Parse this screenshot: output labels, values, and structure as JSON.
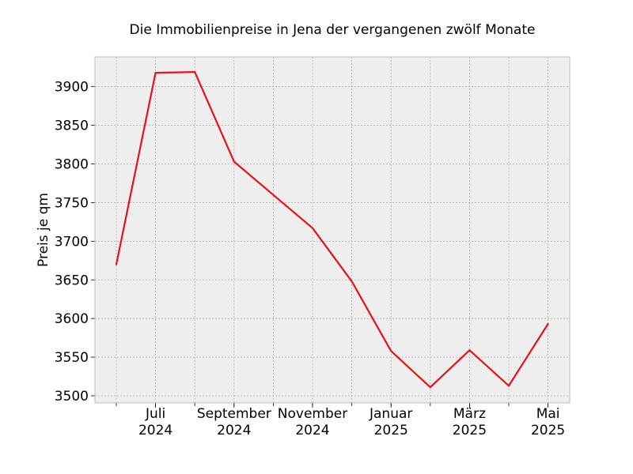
{
  "chart_data": {
    "type": "line",
    "title": "Die Immobilienpreise in Jena der vergangenen zwölf Monate",
    "xlabel": "",
    "ylabel": "Preis je qm",
    "x": [
      "2024-06",
      "2024-07",
      "2024-08",
      "2024-09",
      "2024-10",
      "2024-11",
      "2024-12",
      "2025-01",
      "2025-02",
      "2025-03",
      "2025-04",
      "2025-05"
    ],
    "series": [
      {
        "values": [
          3670,
          3918,
          3919,
          3803,
          3760,
          3717,
          3648,
          3558,
          3511,
          3559,
          3513,
          3593
        ]
      }
    ],
    "ylim": [
      3490,
      3940
    ],
    "y_ticks": [
      "3500",
      "3550",
      "3600",
      "3650",
      "3700",
      "3750",
      "3800",
      "3850",
      "3900"
    ],
    "x_tick_labels": [
      {
        "month": "Juli",
        "year": "2024"
      },
      {
        "month": "September",
        "year": "2024"
      },
      {
        "month": "November",
        "year": "2024"
      },
      {
        "month": "Januar",
        "year": "2025"
      },
      {
        "month": "März",
        "year": "2025"
      },
      {
        "month": "Mai",
        "year": "2025"
      }
    ],
    "grid": true,
    "colors": {
      "line": "#e3121b",
      "plot_background": "#eeeeee",
      "grid": "#b0b0b0",
      "frame": "#bcbcbc"
    }
  }
}
